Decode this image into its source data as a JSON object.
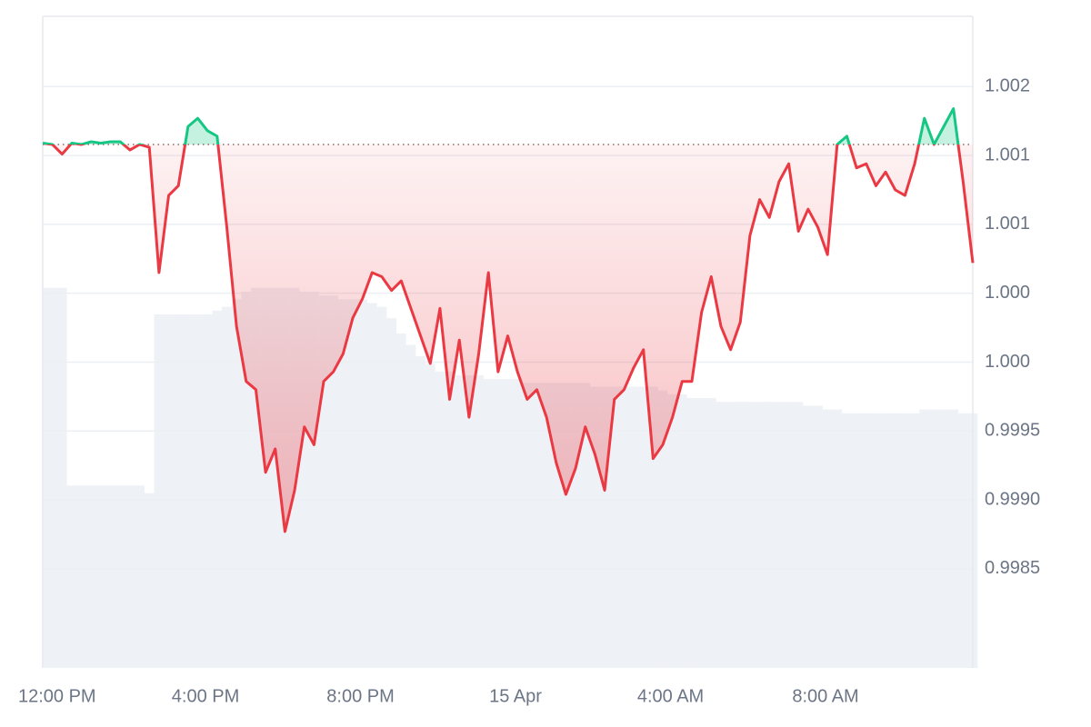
{
  "chart_data": {
    "type": "line",
    "x": [
      11.8,
      12.05,
      12.3,
      12.55,
      12.8,
      13.05,
      13.3,
      13.55,
      13.8,
      14.05,
      14.3,
      14.55,
      14.8,
      15.05,
      15.3,
      15.55,
      15.8,
      16.05,
      16.3,
      16.55,
      16.8,
      17.05,
      17.3,
      17.55,
      17.8,
      18.05,
      18.3,
      18.55,
      18.8,
      19.05,
      19.3,
      19.55,
      19.8,
      20.05,
      20.3,
      20.55,
      20.8,
      21.05,
      21.3,
      21.55,
      21.8,
      22.05,
      22.3,
      22.55,
      22.8,
      23.05,
      23.3,
      23.55,
      23.8,
      24.05,
      24.3,
      24.55,
      24.8,
      25.05,
      25.3,
      25.55,
      25.8,
      26.05,
      26.3,
      26.55,
      26.8,
      27.05,
      27.3,
      27.55,
      27.8,
      28.05,
      28.3,
      28.55,
      28.8,
      29.05,
      29.3,
      29.55,
      29.8,
      30.05,
      30.3,
      30.55,
      30.8,
      31.05,
      31.3,
      31.55,
      31.8,
      32.05,
      32.3,
      32.55,
      32.8,
      33.05,
      33.3,
      33.55,
      33.8,
      34.05,
      34.3,
      34.55,
      34.8,
      35.05,
      35.3,
      35.55,
      35.8
    ],
    "values": [
      1.00159,
      1.00158,
      1.00151,
      1.00159,
      1.00158,
      1.0016,
      1.00159,
      1.0016,
      1.0016,
      1.00154,
      1.00158,
      1.00156,
      1.00065,
      1.00121,
      1.00128,
      1.00171,
      1.00177,
      1.00168,
      1.00164,
      1.00098,
      1.00026,
      0.99986,
      0.9998,
      0.9992,
      0.99937,
      0.99877,
      0.99907,
      0.99953,
      0.9994,
      0.99986,
      0.99993,
      1.00006,
      1.00032,
      1.00046,
      1.00065,
      1.00062,
      1.00052,
      1.00059,
      1.00039,
      1.00019,
      0.99999,
      1.00039,
      0.99973,
      1.00016,
      0.9996,
      1.00006,
      1.00065,
      0.99993,
      1.00019,
      0.99993,
      0.99973,
      0.9998,
      0.9996,
      0.99927,
      0.99904,
      0.99923,
      0.99953,
      0.99933,
      0.99907,
      0.99973,
      0.9998,
      0.99996,
      1.00009,
      0.9993,
      0.9994,
      0.9996,
      0.99986,
      0.99986,
      1.00036,
      1.00062,
      1.00026,
      1.00009,
      1.00029,
      1.00092,
      1.00118,
      1.00105,
      1.00131,
      1.00144,
      1.00095,
      1.00111,
      1.00098,
      1.00078,
      1.00158,
      1.00164,
      1.00141,
      1.00144,
      1.00128,
      1.00138,
      1.00125,
      1.00121,
      1.00144,
      1.00177,
      1.00158,
      1.00171,
      1.00184,
      1.00131,
      1.00072
    ],
    "baseline": 1.00158,
    "up_color": "#16c784",
    "down_color": "#ea3943",
    "volume": [
      100,
      100,
      100,
      48,
      48,
      48,
      48,
      48,
      48,
      48,
      48,
      46,
      93,
      93,
      93,
      93,
      93,
      93,
      94,
      95,
      97,
      99,
      100,
      100,
      100,
      100,
      100,
      99,
      99,
      98,
      98,
      97,
      97,
      97,
      96,
      95,
      92,
      88,
      85,
      82,
      80,
      78,
      78,
      77,
      77,
      77,
      76,
      76,
      76,
      76,
      75,
      75,
      75,
      75,
      75,
      75,
      75,
      74,
      74,
      74,
      74,
      74,
      74,
      74,
      73,
      72,
      72,
      71,
      71,
      71,
      70,
      70,
      70,
      70,
      70,
      70,
      70,
      70,
      70,
      69,
      69,
      68,
      68,
      67,
      67,
      67,
      67,
      67,
      67,
      67,
      67,
      68,
      68,
      68,
      68,
      67,
      67
    ],
    "volume_lim": [
      0,
      120
    ],
    "volume_color": "#eef1f5",
    "xlim": [
      11.8,
      35.8
    ],
    "xticks": [
      {
        "value": 12,
        "label": "12:00 PM"
      },
      {
        "value": 16,
        "label": "4:00 PM"
      },
      {
        "value": 20,
        "label": "8:00 PM"
      },
      {
        "value": 24,
        "label": "15 Apr"
      },
      {
        "value": 28,
        "label": "4:00 AM"
      },
      {
        "value": 32,
        "label": "8:00 AM"
      }
    ],
    "ylim": [
      0.99778,
      1.00251
    ],
    "yticks": [
      1.002,
      {
        "value": 1.0015,
        "label": "1.001"
      },
      1.001,
      {
        "value": 1.0005,
        "label": "1.000"
      },
      {
        "value": 1.0,
        "label": "1.000"
      },
      0.9995,
      {
        "value": 0.999,
        "label": "0.9990"
      },
      0.9985
    ],
    "grid": true
  }
}
